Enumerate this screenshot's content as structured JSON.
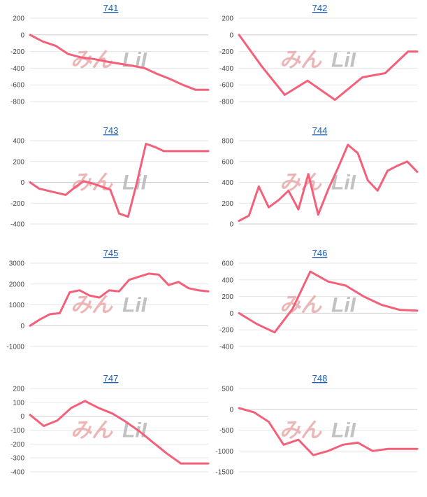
{
  "colors": {
    "series": "#f4607a",
    "title_link": "#1a5fb4",
    "watermark_primary": "#e9aaaa",
    "watermark_secondary": "#b8b8b8"
  },
  "watermark": {
    "part1": "みん",
    "part2": "LiI"
  },
  "chart_data": [
    {
      "type": "line",
      "title": "741",
      "yticks": [
        200,
        0,
        -200,
        -400,
        -600,
        -800
      ],
      "ylim": [
        -800,
        200
      ],
      "x": [
        0,
        1,
        2,
        3,
        4,
        5,
        6,
        7,
        8,
        9,
        10,
        11,
        12,
        13,
        14
      ],
      "values": [
        0,
        -80,
        -130,
        -230,
        -270,
        -290,
        -320,
        -345,
        -370,
        -400,
        -470,
        -530,
        -600,
        -660,
        -660
      ]
    },
    {
      "type": "line",
      "title": "742",
      "yticks": [
        200,
        0,
        -200,
        -400,
        -600,
        -800
      ],
      "ylim": [
        -800,
        200
      ],
      "x": [
        0,
        2.5,
        5,
        7.5,
        10.5,
        13.5,
        16,
        18.5,
        19.5
      ],
      "values": [
        0,
        -380,
        -720,
        -550,
        -780,
        -510,
        -460,
        -200,
        -200
      ]
    },
    {
      "type": "line",
      "title": "743",
      "yticks": [
        400,
        200,
        0,
        -200,
        -400
      ],
      "ylim": [
        -400,
        400
      ],
      "x": [
        0,
        1,
        2,
        3,
        4,
        5,
        6,
        7,
        8,
        9,
        10,
        11,
        12,
        13,
        14,
        15,
        16,
        17,
        18,
        19,
        20
      ],
      "values": [
        0,
        -60,
        -80,
        -100,
        -120,
        -50,
        10,
        -10,
        -40,
        -70,
        -300,
        -330,
        0,
        370,
        340,
        300,
        300,
        300,
        300,
        300,
        300
      ]
    },
    {
      "type": "line",
      "title": "744",
      "yticks": [
        800,
        600,
        400,
        200,
        0
      ],
      "ylim": [
        0,
        800
      ],
      "x": [
        0,
        1,
        2,
        3,
        4,
        5,
        6,
        7,
        8,
        9,
        10,
        11,
        12,
        13,
        14,
        15,
        16,
        17,
        18
      ],
      "values": [
        30,
        80,
        360,
        160,
        230,
        320,
        140,
        480,
        90,
        330,
        540,
        760,
        680,
        420,
        320,
        510,
        560,
        600,
        500
      ]
    },
    {
      "type": "line",
      "title": "745",
      "yticks": [
        3000,
        2000,
        1000,
        0,
        -1000
      ],
      "ylim": [
        -1000,
        3000
      ],
      "x": [
        0,
        1,
        2,
        3,
        4,
        5,
        6,
        7,
        8,
        9,
        10,
        11,
        12,
        13,
        14,
        15,
        16,
        17,
        18
      ],
      "values": [
        0,
        300,
        550,
        600,
        1600,
        1700,
        1450,
        1350,
        1700,
        1650,
        2200,
        2350,
        2500,
        2450,
        1950,
        2100,
        1800,
        1700,
        1650
      ]
    },
    {
      "type": "line",
      "title": "746",
      "yticks": [
        600,
        400,
        200,
        0,
        -200,
        -400
      ],
      "ylim": [
        -400,
        600
      ],
      "x": [
        0,
        1,
        2,
        3,
        4,
        5,
        6,
        7,
        8,
        9,
        10
      ],
      "values": [
        0,
        -130,
        -230,
        50,
        500,
        380,
        330,
        200,
        100,
        40,
        30
      ]
    },
    {
      "type": "line",
      "title": "747",
      "yticks": [
        200,
        100,
        0,
        -100,
        -200,
        -300,
        -400
      ],
      "ylim": [
        -400,
        200
      ],
      "x": [
        0,
        1,
        2,
        3,
        4,
        5,
        6,
        7,
        8,
        9,
        10,
        11,
        12,
        13
      ],
      "values": [
        10,
        -70,
        -30,
        60,
        110,
        60,
        20,
        -40,
        -110,
        -190,
        -270,
        -340,
        -340,
        -340
      ]
    },
    {
      "type": "line",
      "title": "748",
      "yticks": [
        500,
        0,
        -500,
        -1000,
        -1500
      ],
      "ylim": [
        -1500,
        500
      ],
      "x": [
        0,
        1,
        2,
        3,
        4,
        5,
        6,
        7,
        8,
        9,
        10,
        11,
        12
      ],
      "values": [
        30,
        -70,
        -300,
        -850,
        -730,
        -1100,
        -1000,
        -850,
        -800,
        -1000,
        -950,
        -950,
        -950
      ]
    }
  ]
}
